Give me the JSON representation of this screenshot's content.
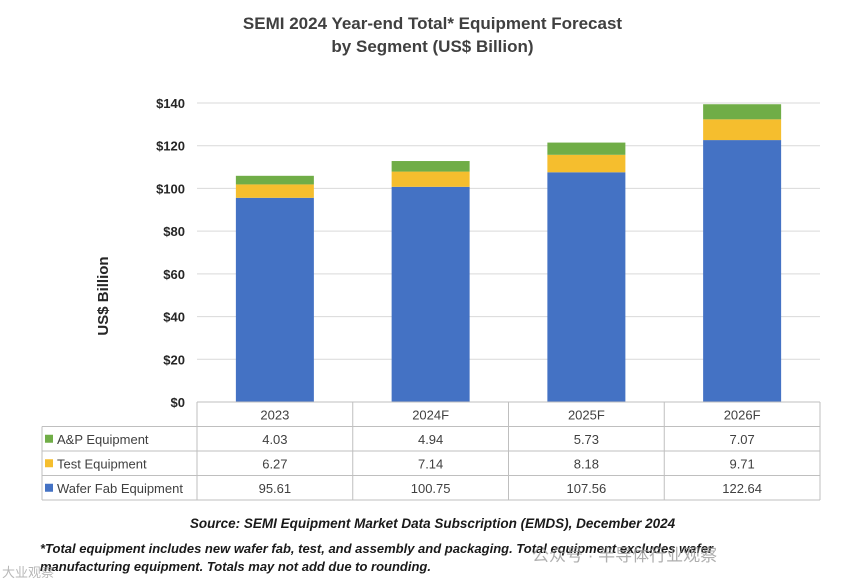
{
  "chart_data": {
    "type": "bar",
    "stacked": true,
    "title": "SEMI 2024 Year-end Total* Equipment Forecast",
    "subtitle": "by Segment (US$ Billion)",
    "ylabel": "US$ Billion",
    "ylim": [
      0,
      140
    ],
    "yticks": [
      "$0",
      "$20",
      "$40",
      "$60",
      "$80",
      "$100",
      "$120",
      "$140"
    ],
    "grid": true,
    "categories": [
      "2023",
      "2024F",
      "2025F",
      "2026F"
    ],
    "series": [
      {
        "name": "Wafer Fab Equipment",
        "color": "#4472C4",
        "values": [
          95.61,
          100.75,
          107.56,
          122.64
        ],
        "labels": [
          "95.61",
          "100.75",
          "107.56",
          "122.64"
        ]
      },
      {
        "name": "Test Equipment",
        "color": "#F5BE2E",
        "values": [
          6.27,
          7.14,
          8.18,
          9.71
        ],
        "labels": [
          "6.27",
          "7.14",
          "8.18",
          "9.71"
        ]
      },
      {
        "name": "A&P Equipment",
        "color": "#70AD47",
        "values": [
          4.03,
          4.94,
          5.73,
          7.07
        ],
        "labels": [
          "4.03",
          "4.94",
          "5.73",
          "7.07"
        ]
      }
    ],
    "table_row_order": [
      "A&P Equipment",
      "Test Equipment",
      "Wafer Fab Equipment"
    ]
  },
  "source": "Source: SEMI Equipment Market Data Subscription (EMDS), December 2024",
  "footnote_line1": "*Total equipment includes new wafer fab, test, and assembly and packaging. Total equipment excludes wafer",
  "footnote_line2": "manufacturing equipment. Totals may not add due to rounding.",
  "watermark": "公众号 · 半导体行业观察",
  "watermark_left": "大业观察"
}
